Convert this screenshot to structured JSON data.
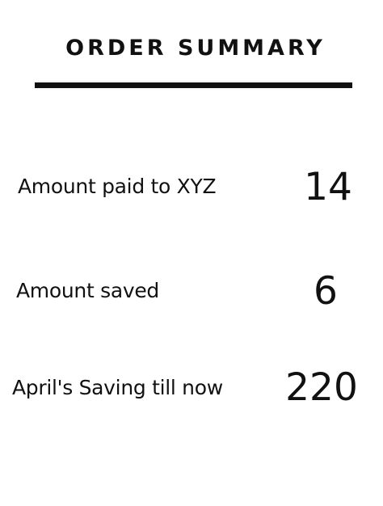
{
  "summary": {
    "title": "ORDER SUMMARY",
    "rows": [
      {
        "label": "Amount paid to XYZ",
        "value": "14"
      },
      {
        "label": "Amount saved",
        "value": "6"
      },
      {
        "label": "April's Saving till now",
        "value": "220"
      }
    ]
  }
}
